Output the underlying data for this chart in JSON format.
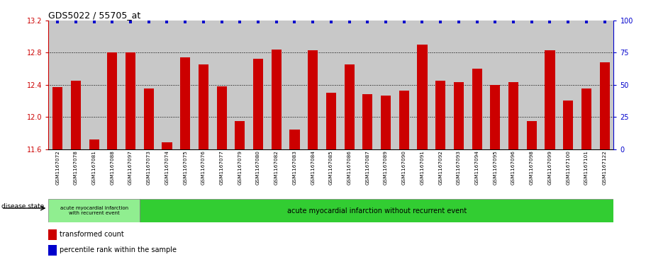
{
  "title": "GDS5022 / 55705_at",
  "samples": [
    "GSM1167072",
    "GSM1167078",
    "GSM1167081",
    "GSM1167088",
    "GSM1167097",
    "GSM1167073",
    "GSM1167074",
    "GSM1167075",
    "GSM1167076",
    "GSM1167077",
    "GSM1167079",
    "GSM1167080",
    "GSM1167082",
    "GSM1167083",
    "GSM1167084",
    "GSM1167085",
    "GSM1167086",
    "GSM1167087",
    "GSM1167089",
    "GSM1167090",
    "GSM1167091",
    "GSM1167092",
    "GSM1167093",
    "GSM1167094",
    "GSM1167095",
    "GSM1167096",
    "GSM1167098",
    "GSM1167099",
    "GSM1167100",
    "GSM1167101",
    "GSM1167122"
  ],
  "values": [
    12.37,
    12.45,
    11.72,
    12.8,
    12.8,
    12.35,
    11.68,
    12.74,
    12.65,
    12.38,
    11.95,
    12.72,
    12.84,
    11.84,
    12.83,
    12.3,
    12.65,
    12.28,
    12.27,
    12.33,
    12.9,
    12.45,
    12.43,
    12.6,
    12.4,
    12.43,
    11.95,
    12.83,
    12.2,
    12.35,
    12.68
  ],
  "bar_color": "#cc0000",
  "percentile_color": "#0000cc",
  "ymin": 11.6,
  "ymax": 13.2,
  "yticks": [
    11.6,
    12.0,
    12.4,
    12.8,
    13.2
  ],
  "right_yticks": [
    0,
    25,
    50,
    75,
    100
  ],
  "group1_count": 5,
  "group1_label": "acute myocardial infarction\nwith recurrent event",
  "group2_label": "acute myocardial infarction without recurrent event",
  "group1_color": "#90ee90",
  "group2_color": "#32cd32",
  "disease_state_label": "disease state",
  "legend_bar_label": "transformed count",
  "legend_pct_label": "percentile rank within the sample",
  "plot_bg_color": "#c8c8c8",
  "tick_color_left": "#cc0000",
  "tick_color_right": "#0000cc"
}
